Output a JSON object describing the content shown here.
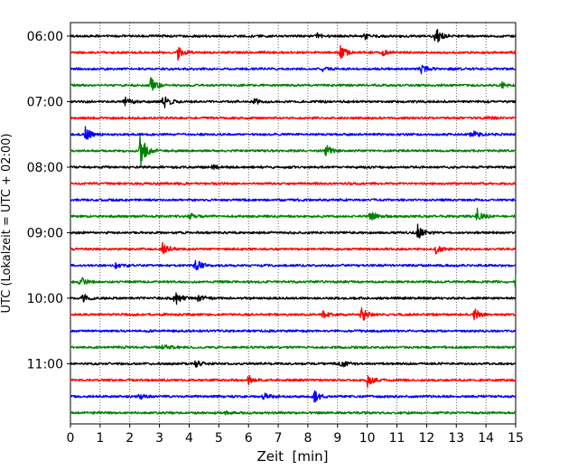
{
  "chart_data": {
    "type": "line",
    "title": "",
    "xlabel": "Zeit  [min]",
    "ylabel": "UTC (Lokalzeit = UTC + 02:00)",
    "xlim": [
      0,
      15
    ],
    "x_ticks": [
      "0",
      "1",
      "2",
      "3",
      "4",
      "5",
      "6",
      "7",
      "8",
      "9",
      "10",
      "11",
      "12",
      "13",
      "14",
      "15"
    ],
    "y_tick_labels": [
      "06:00",
      "07:00",
      "08:00",
      "09:00",
      "10:00",
      "11:00"
    ],
    "grid": "vertical dotted lines at each minute",
    "color_cycle": [
      "#000000",
      "#ff0000",
      "#0000ff",
      "#008000"
    ],
    "rows_start_time": "06:00",
    "row_interval_min": 15,
    "rows": [
      {
        "start": "06:00",
        "color": "#000000",
        "events": [
          {
            "t": 12.3,
            "amp": 0.9
          },
          {
            "t": 9.9,
            "amp": 0.35
          },
          {
            "t": 8.3,
            "amp": 0.25
          }
        ]
      },
      {
        "start": "06:15",
        "color": "#ff0000",
        "events": [
          {
            "t": 3.6,
            "amp": 0.8
          },
          {
            "t": 9.1,
            "amp": 0.75
          },
          {
            "t": 15.0,
            "amp": 0.5
          },
          {
            "t": 10.5,
            "amp": 0.3
          }
        ]
      },
      {
        "start": "06:30",
        "color": "#0000ff",
        "events": [
          {
            "t": 11.8,
            "amp": 0.55
          },
          {
            "t": 8.5,
            "amp": 0.25
          }
        ]
      },
      {
        "start": "06:45",
        "color": "#008000",
        "events": [
          {
            "t": 2.7,
            "amp": 0.8
          },
          {
            "t": 14.5,
            "amp": 0.35
          }
        ]
      },
      {
        "start": "07:00",
        "color": "#000000",
        "events": [
          {
            "t": 3.1,
            "amp": 0.8
          },
          {
            "t": 1.8,
            "amp": 0.55
          },
          {
            "t": 6.2,
            "amp": 0.3
          }
        ]
      },
      {
        "start": "07:15",
        "color": "#ff0000",
        "events": [
          {
            "t": 14.0,
            "amp": 0.3
          }
        ]
      },
      {
        "start": "07:30",
        "color": "#0000ff",
        "events": [
          {
            "t": 0.5,
            "amp": 0.75
          },
          {
            "t": 13.5,
            "amp": 0.45
          }
        ]
      },
      {
        "start": "07:45",
        "color": "#008000",
        "events": [
          {
            "t": 2.35,
            "amp": 1.8
          },
          {
            "t": 8.6,
            "amp": 0.7
          }
        ]
      },
      {
        "start": "08:00",
        "color": "#000000",
        "events": [
          {
            "t": 4.8,
            "amp": 0.3
          }
        ]
      },
      {
        "start": "08:15",
        "color": "#ff0000",
        "events": []
      },
      {
        "start": "08:30",
        "color": "#0000ff",
        "events": []
      },
      {
        "start": "08:45",
        "color": "#008000",
        "events": [
          {
            "t": 10.1,
            "amp": 0.6
          },
          {
            "t": 13.7,
            "amp": 0.75
          },
          {
            "t": 4.0,
            "amp": 0.3
          }
        ]
      },
      {
        "start": "09:00",
        "color": "#000000",
        "events": [
          {
            "t": 11.7,
            "amp": 0.8
          }
        ]
      },
      {
        "start": "09:15",
        "color": "#ff0000",
        "events": [
          {
            "t": 3.1,
            "amp": 0.6
          },
          {
            "t": 12.3,
            "amp": 0.4
          }
        ]
      },
      {
        "start": "09:30",
        "color": "#0000ff",
        "events": [
          {
            "t": 4.2,
            "amp": 0.7
          },
          {
            "t": 1.5,
            "amp": 0.3
          }
        ]
      },
      {
        "start": "09:45",
        "color": "#008000",
        "events": [
          {
            "t": 0.3,
            "amp": 0.6
          },
          {
            "t": 15.0,
            "amp": 0.9
          }
        ]
      },
      {
        "start": "10:00",
        "color": "#000000",
        "events": [
          {
            "t": 3.5,
            "amp": 0.8
          },
          {
            "t": 0.4,
            "amp": 0.5
          },
          {
            "t": 4.3,
            "amp": 0.4
          }
        ]
      },
      {
        "start": "10:15",
        "color": "#ff0000",
        "events": [
          {
            "t": 9.8,
            "amp": 0.8
          },
          {
            "t": 13.6,
            "amp": 0.6
          },
          {
            "t": 8.5,
            "amp": 0.35
          }
        ]
      },
      {
        "start": "10:30",
        "color": "#0000ff",
        "events": []
      },
      {
        "start": "10:45",
        "color": "#008000",
        "events": [
          {
            "t": 3.1,
            "amp": 0.35
          }
        ]
      },
      {
        "start": "11:00",
        "color": "#000000",
        "events": [
          {
            "t": 9.1,
            "amp": 0.4
          },
          {
            "t": 4.2,
            "amp": 0.3
          }
        ]
      },
      {
        "start": "11:15",
        "color": "#ff0000",
        "events": [
          {
            "t": 6.0,
            "amp": 0.55
          },
          {
            "t": 10.0,
            "amp": 0.65
          }
        ]
      },
      {
        "start": "11:30",
        "color": "#0000ff",
        "events": [
          {
            "t": 8.2,
            "amp": 0.6
          },
          {
            "t": 6.5,
            "amp": 0.35
          },
          {
            "t": 2.3,
            "amp": 0.3
          }
        ]
      },
      {
        "start": "11:45",
        "color": "#008000",
        "events": [
          {
            "t": 5.2,
            "amp": 0.3
          }
        ]
      }
    ]
  }
}
